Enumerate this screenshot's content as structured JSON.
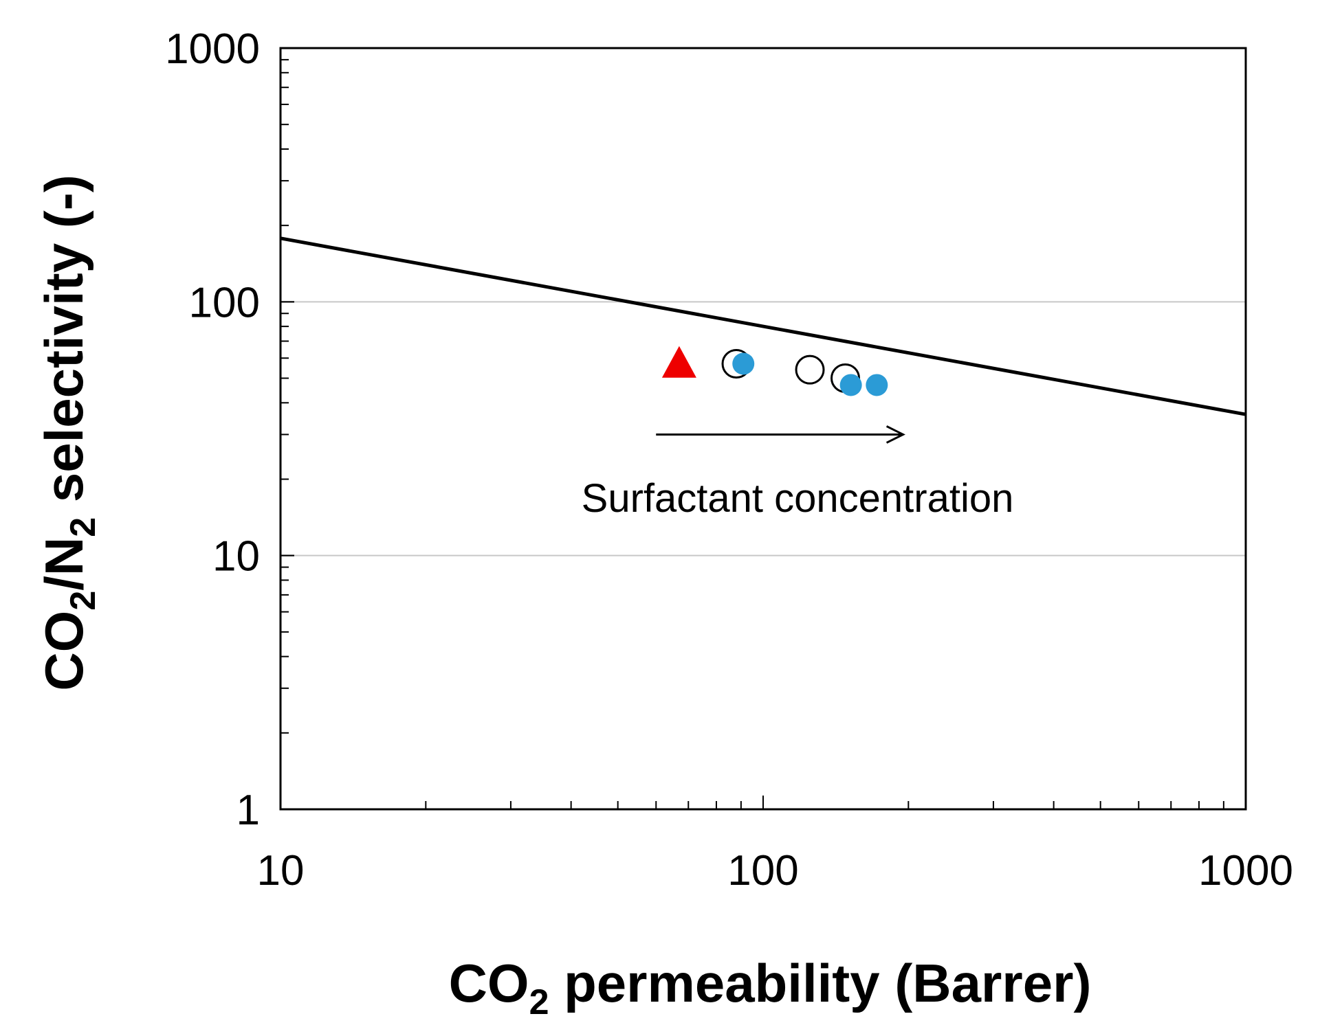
{
  "chart_data": {
    "type": "scatter",
    "xscale": "log",
    "yscale": "log",
    "xlim": [
      10,
      1000
    ],
    "ylim": [
      1,
      1000
    ],
    "xticks": [
      "10",
      "100",
      "1000"
    ],
    "yticks": [
      "1",
      "10",
      "100",
      "1000"
    ],
    "xlabel": {
      "main": "CO",
      "sub": "2",
      "rest": " permeability (Barrer)"
    },
    "ylabel": {
      "p1": "CO",
      "s1": "2",
      "p2": "/N",
      "s2": "2",
      "p3": " selectivity (-)"
    },
    "grid": "horizontal major",
    "upper_bound_line": {
      "x": [
        10,
        1000
      ],
      "y": [
        178,
        36
      ],
      "color": "#000000"
    },
    "series": [
      {
        "name": "Triangle",
        "marker": "triangle",
        "color": "#ee0000",
        "points": [
          {
            "x": 67,
            "y": 58
          }
        ]
      },
      {
        "name": "Open circles",
        "marker": "open-circle",
        "color": "#000000",
        "points": [
          {
            "x": 88,
            "y": 57
          },
          {
            "x": 125,
            "y": 54
          },
          {
            "x": 148,
            "y": 50
          }
        ]
      },
      {
        "name": "Filled circles",
        "marker": "filled-circle",
        "color": "#2b9bd6",
        "points": [
          {
            "x": 91,
            "y": 57
          },
          {
            "x": 152,
            "y": 47
          },
          {
            "x": 172,
            "y": 47
          }
        ]
      }
    ],
    "annotation": {
      "text": "Surfactant concentration",
      "arrow_from_x": 60,
      "arrow_to_x": 195,
      "arrow_y": 30
    }
  }
}
